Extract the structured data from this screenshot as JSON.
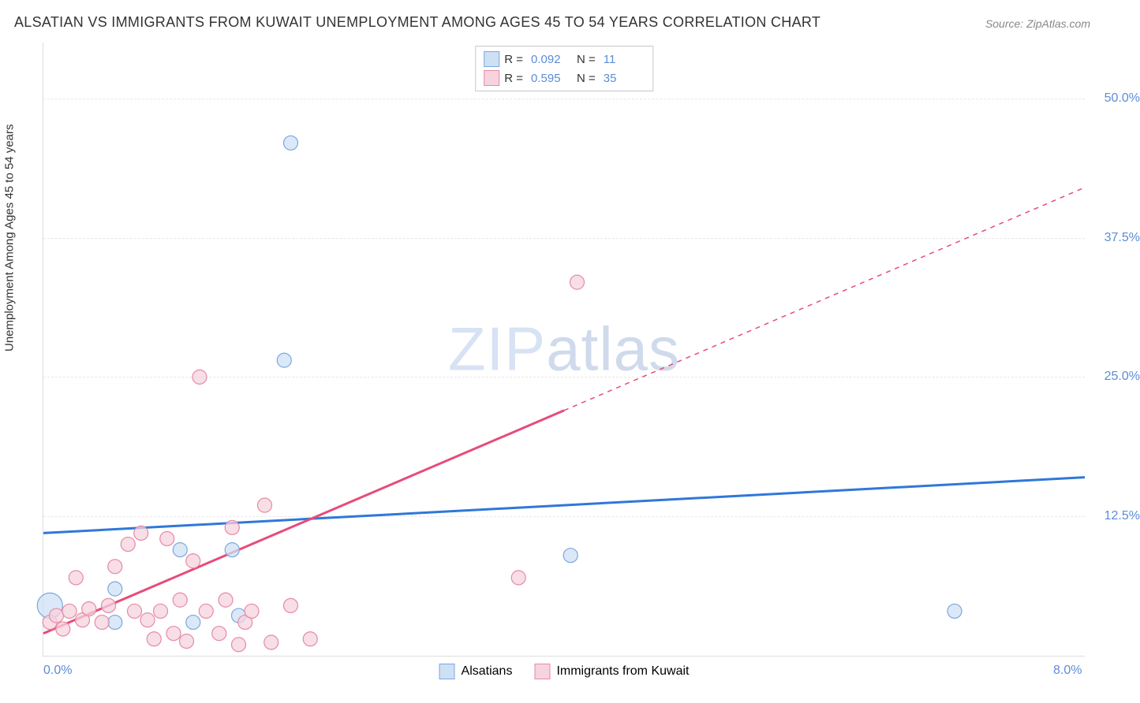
{
  "title": "ALSATIAN VS IMMIGRANTS FROM KUWAIT UNEMPLOYMENT AMONG AGES 45 TO 54 YEARS CORRELATION CHART",
  "source": "Source: ZipAtlas.com",
  "watermark": {
    "bold": "ZIP",
    "thin": "atlas"
  },
  "y_axis_label": "Unemployment Among Ages 45 to 54 years",
  "chart": {
    "type": "scatter-correlation",
    "background_color": "#ffffff",
    "grid_color": "#e8e8e8",
    "border_color": "#dcdcdc",
    "xlim": [
      0,
      8
    ],
    "ylim": [
      0,
      55
    ],
    "x_ticks": [
      {
        "value": 0,
        "label": "0.0%"
      },
      {
        "value": 8,
        "label": "8.0%"
      }
    ],
    "y_ticks": [
      {
        "value": 12.5,
        "label": "12.5%"
      },
      {
        "value": 25.0,
        "label": "25.0%"
      },
      {
        "value": 37.5,
        "label": "37.5%"
      },
      {
        "value": 50.0,
        "label": "50.0%"
      }
    ],
    "series": [
      {
        "id": "alsatians",
        "label": "Alsatians",
        "marker_fill": "#cfe0f4",
        "marker_stroke": "#7aa8de",
        "marker_opacity": 0.75,
        "marker_radius": 9,
        "line_color": "#2f78d8",
        "line_width": 3,
        "r": "0.092",
        "n": "11",
        "trend": {
          "x1": 0,
          "y1": 11.0,
          "x2": 8,
          "y2": 16.0,
          "dashed_from_x": null
        },
        "points": [
          {
            "x": 0.05,
            "y": 4.5,
            "r": 16
          },
          {
            "x": 0.55,
            "y": 6.0
          },
          {
            "x": 0.55,
            "y": 3.0
          },
          {
            "x": 1.05,
            "y": 9.5
          },
          {
            "x": 1.15,
            "y": 3.0
          },
          {
            "x": 1.45,
            "y": 9.5
          },
          {
            "x": 1.5,
            "y": 3.6
          },
          {
            "x": 1.85,
            "y": 26.5
          },
          {
            "x": 1.9,
            "y": 46.0
          },
          {
            "x": 4.05,
            "y": 9.0
          },
          {
            "x": 7.0,
            "y": 4.0
          }
        ]
      },
      {
        "id": "kuwait",
        "label": "Immigrants from Kuwait",
        "marker_fill": "#f6d3dd",
        "marker_stroke": "#e68aa4",
        "marker_opacity": 0.75,
        "marker_radius": 9,
        "line_color": "#e84b7a",
        "line_width": 3,
        "r": "0.595",
        "n": "35",
        "trend": {
          "x1": 0,
          "y1": 2.0,
          "x2": 8,
          "y2": 42.0,
          "dashed_from_x": 4.0
        },
        "points": [
          {
            "x": 0.05,
            "y": 3.0
          },
          {
            "x": 0.1,
            "y": 3.6
          },
          {
            "x": 0.15,
            "y": 2.4
          },
          {
            "x": 0.2,
            "y": 4.0
          },
          {
            "x": 0.25,
            "y": 7.0
          },
          {
            "x": 0.3,
            "y": 3.2
          },
          {
            "x": 0.35,
            "y": 4.2
          },
          {
            "x": 0.45,
            "y": 3.0
          },
          {
            "x": 0.5,
            "y": 4.5
          },
          {
            "x": 0.55,
            "y": 8.0
          },
          {
            "x": 0.65,
            "y": 10.0
          },
          {
            "x": 0.7,
            "y": 4.0
          },
          {
            "x": 0.75,
            "y": 11.0
          },
          {
            "x": 0.8,
            "y": 3.2
          },
          {
            "x": 0.85,
            "y": 1.5
          },
          {
            "x": 0.9,
            "y": 4.0
          },
          {
            "x": 0.95,
            "y": 10.5
          },
          {
            "x": 1.0,
            "y": 2.0
          },
          {
            "x": 1.05,
            "y": 5.0
          },
          {
            "x": 1.1,
            "y": 1.3
          },
          {
            "x": 1.15,
            "y": 8.5
          },
          {
            "x": 1.2,
            "y": 25.0
          },
          {
            "x": 1.25,
            "y": 4.0
          },
          {
            "x": 1.35,
            "y": 2.0
          },
          {
            "x": 1.4,
            "y": 5.0
          },
          {
            "x": 1.45,
            "y": 11.5
          },
          {
            "x": 1.5,
            "y": 1.0
          },
          {
            "x": 1.55,
            "y": 3.0
          },
          {
            "x": 1.6,
            "y": 4.0
          },
          {
            "x": 1.7,
            "y": 13.5
          },
          {
            "x": 1.75,
            "y": 1.2
          },
          {
            "x": 1.9,
            "y": 4.5
          },
          {
            "x": 2.05,
            "y": 1.5
          },
          {
            "x": 3.65,
            "y": 7.0
          },
          {
            "x": 4.1,
            "y": 33.5
          }
        ]
      }
    ]
  },
  "legend_top": {
    "r_label": "R =",
    "n_label": "N ="
  }
}
